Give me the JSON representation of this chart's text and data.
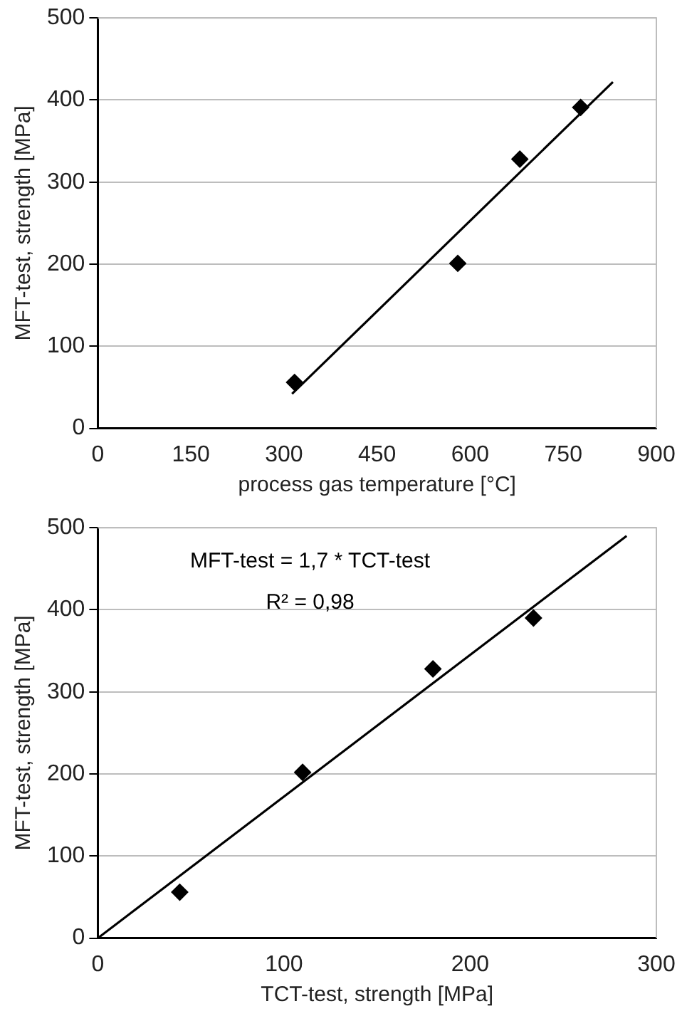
{
  "chart_data": [
    {
      "type": "scatter",
      "xlabel": "process gas temperature [°C]",
      "ylabel": "MFT-test, strength [MPa]",
      "xlim": [
        0,
        900
      ],
      "xticks": [
        0,
        150,
        300,
        450,
        600,
        750,
        900
      ],
      "ylim": [
        0,
        500
      ],
      "yticks": [
        0,
        100,
        200,
        300,
        400,
        500
      ],
      "grid": "y",
      "marker": "diamond",
      "legend": false,
      "series": [
        {
          "type": "scatter",
          "color": "#000000",
          "x": [
            317,
            580,
            680,
            778
          ],
          "values": [
            56,
            201,
            328,
            391
          ]
        },
        {
          "type": "line",
          "color": "#000000",
          "marker": "none",
          "line_style": "solid",
          "x": [
            313,
            830
          ],
          "values": [
            42,
            422
          ]
        }
      ]
    },
    {
      "type": "scatter",
      "xlabel": "TCT-test, strength [MPa]",
      "ylabel": "MFT-test, strength [MPa]",
      "xlim": [
        0,
        300
      ],
      "xticks": [
        0,
        100,
        200,
        300
      ],
      "ylim": [
        0,
        500
      ],
      "yticks": [
        0,
        100,
        200,
        300,
        400,
        500
      ],
      "grid": "y",
      "marker": "diamond",
      "legend": false,
      "annotations": [
        "MFT-test = 1,7 * TCT-test",
        "R² = 0,98"
      ],
      "series": [
        {
          "type": "scatter",
          "color": "#000000",
          "x": [
            44,
            110,
            180,
            234
          ],
          "values": [
            56,
            202,
            328,
            390
          ]
        },
        {
          "type": "line",
          "color": "#000000",
          "marker": "none",
          "line_style": "solid",
          "x": [
            0,
            284
          ],
          "values": [
            0,
            490
          ]
        }
      ]
    }
  ]
}
